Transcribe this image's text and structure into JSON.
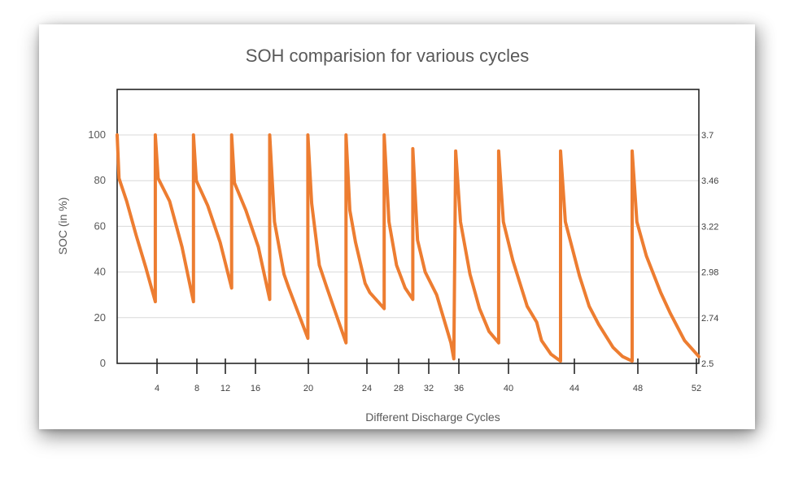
{
  "chart_data": {
    "type": "line",
    "title": "SOH comparision for various cycles",
    "xlabel": "Different Discharge Cycles",
    "ylabel": "SOC (in %)",
    "ylim": [
      0,
      120
    ],
    "y_ticks": [
      "0",
      "20",
      "40",
      "60",
      "80",
      "100"
    ],
    "y2_ticks": [
      "2.5",
      "2.74",
      "2.98",
      "3.22",
      "3.46",
      "3.7"
    ],
    "x_ticks": [
      "4",
      "8",
      "12",
      "16",
      "20",
      "24",
      "28",
      "32",
      "36",
      "40",
      "44",
      "48",
      "52"
    ],
    "x_ticks_values": [
      4,
      8,
      12,
      16,
      20,
      24,
      28,
      32,
      36,
      40,
      44,
      48,
      52
    ],
    "grid": true,
    "line_color": "#ED7D31",
    "series": [
      {
        "points": [
          [
            0,
            100
          ],
          [
            0.2,
            81
          ],
          [
            1,
            71
          ],
          [
            2,
            56
          ],
          [
            3,
            42
          ],
          [
            4,
            27
          ],
          [
            4,
            100
          ],
          [
            4.3,
            81
          ],
          [
            5.5,
            71
          ],
          [
            6.8,
            51
          ],
          [
            8,
            27
          ],
          [
            8,
            100
          ],
          [
            8.3,
            80
          ],
          [
            9.5,
            69
          ],
          [
            10.8,
            53
          ],
          [
            12,
            33
          ],
          [
            12,
            100
          ],
          [
            12.3,
            79
          ],
          [
            13.5,
            67
          ],
          [
            14.8,
            51
          ],
          [
            16,
            28
          ],
          [
            16,
            100
          ],
          [
            16.5,
            62
          ],
          [
            17.5,
            39
          ],
          [
            18,
            33
          ],
          [
            20,
            11
          ],
          [
            20,
            100
          ],
          [
            20.4,
            70
          ],
          [
            21.2,
            43
          ],
          [
            22,
            33
          ],
          [
            24,
            9
          ],
          [
            24,
            100
          ],
          [
            24.4,
            67
          ],
          [
            25,
            53
          ],
          [
            26,
            35
          ],
          [
            26.5,
            31
          ],
          [
            28,
            24
          ],
          [
            28,
            100
          ],
          [
            28.5,
            62
          ],
          [
            29.3,
            43
          ],
          [
            30.2,
            33
          ],
          [
            31,
            28
          ],
          [
            31,
            94
          ],
          [
            31.5,
            54
          ],
          [
            32.3,
            40
          ],
          [
            33.5,
            30
          ],
          [
            34.5,
            16
          ],
          [
            35,
            9
          ],
          [
            35.3,
            2
          ],
          [
            35.5,
            93
          ],
          [
            36,
            62
          ],
          [
            37,
            39
          ],
          [
            38,
            24
          ],
          [
            39,
            14
          ],
          [
            40,
            9
          ],
          [
            40,
            93
          ],
          [
            40.5,
            62
          ],
          [
            41.5,
            45
          ],
          [
            43,
            25
          ],
          [
            44,
            18
          ],
          [
            44.5,
            10
          ],
          [
            45.5,
            4
          ],
          [
            46.5,
            1
          ],
          [
            46.5,
            93
          ],
          [
            47,
            62
          ],
          [
            48.5,
            38
          ],
          [
            49.5,
            25
          ],
          [
            50.5,
            17
          ],
          [
            52,
            7
          ],
          [
            53,
            3
          ],
          [
            54,
            1
          ],
          [
            54,
            93
          ],
          [
            54.5,
            62
          ],
          [
            55.5,
            47
          ],
          [
            57,
            31
          ],
          [
            58,
            22
          ],
          [
            59.5,
            10
          ],
          [
            61,
            3
          ]
        ]
      }
    ]
  }
}
